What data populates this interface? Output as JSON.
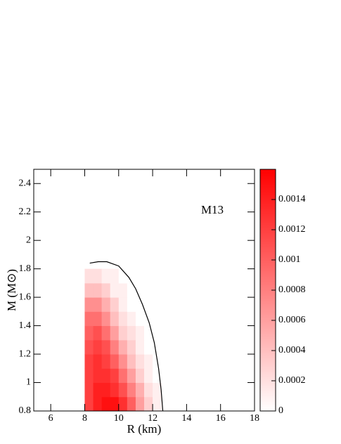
{
  "chart_data": {
    "type": "heatmap",
    "annotation": "M13",
    "xlabel": "R (km)",
    "ylabel": "M (M⊙)",
    "xlim": [
      5,
      18
    ],
    "xticks": [
      6,
      8,
      10,
      12,
      14,
      16,
      18
    ],
    "ylim": [
      0.8,
      2.5
    ],
    "yticks": [
      0.8,
      1,
      1.2,
      1.4,
      1.6,
      1.8,
      2,
      2.2,
      2.4
    ],
    "x_edges": [
      8,
      8.5,
      9,
      9.5,
      10,
      10.5,
      11,
      11.5,
      12,
      12.5
    ],
    "y_edges": [
      0.8,
      0.9,
      1.0,
      1.1,
      1.2,
      1.3,
      1.4,
      1.5,
      1.6,
      1.7,
      1.8
    ],
    "z": [
      [
        0.0012,
        0.0014,
        0.0015,
        0.0015,
        0.0013,
        0.001,
        0.0006,
        0.0003,
        0.0001
      ],
      [
        0.0012,
        0.0014,
        0.0014,
        0.0013,
        0.0011,
        0.0008,
        0.0005,
        0.0002,
        0.0001
      ],
      [
        0.0012,
        0.0013,
        0.0013,
        0.0012,
        0.0009,
        0.0006,
        0.0003,
        0.0001,
        0
      ],
      [
        0.0012,
        0.0013,
        0.0012,
        0.001,
        0.0007,
        0.0004,
        0.0002,
        0.0001,
        0
      ],
      [
        0.0011,
        0.0012,
        0.0011,
        0.0008,
        0.0005,
        0.0003,
        0.0001,
        0,
        0
      ],
      [
        0.001,
        0.0011,
        0.0009,
        0.0006,
        0.0003,
        0.0002,
        0.0001,
        0,
        0
      ],
      [
        0.0009,
        0.0009,
        0.0007,
        0.0004,
        0.0002,
        0.0001,
        0,
        0,
        0
      ],
      [
        0.0007,
        0.0007,
        0.0005,
        0.0003,
        0.0001,
        0,
        0,
        0,
        0
      ],
      [
        0.0004,
        0.0004,
        0.0003,
        0.0001,
        0.0001,
        0,
        0,
        0,
        0
      ],
      [
        0.0002,
        0.0002,
        0.0001,
        0.0001,
        0,
        0,
        0,
        0,
        0
      ]
    ],
    "zlim": [
      0,
      0.0016
    ],
    "zticks": [
      0,
      0.0002,
      0.0004,
      0.0006,
      0.0008,
      0.001,
      0.0012,
      0.0014
    ],
    "colormap": [
      "#ffffff",
      "#ff0000"
    ],
    "contour": {
      "color": "#000000",
      "x": [
        8.3,
        8.8,
        9.3,
        10,
        10.6,
        11.0,
        11.4,
        11.8,
        12.1,
        12.35,
        12.5,
        12.6
      ],
      "y": [
        1.84,
        1.85,
        1.85,
        1.82,
        1.74,
        1.66,
        1.55,
        1.42,
        1.28,
        1.1,
        0.95,
        0.8
      ]
    }
  }
}
